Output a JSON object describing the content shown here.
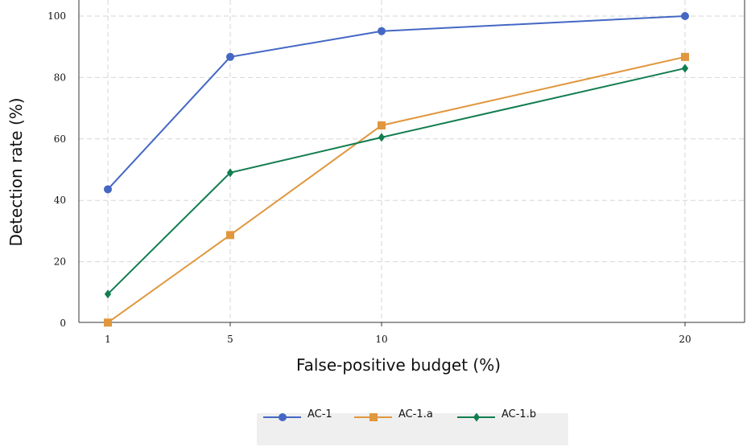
{
  "chart_data": {
    "type": "line",
    "xlabel": "False-positive budget (%)",
    "ylabel": "Detection rate (%)",
    "x": [
      1,
      5,
      10,
      20
    ],
    "x_tick_labels": [
      "1",
      "5",
      "10",
      "20"
    ],
    "y_tick_labels": [
      "0",
      "20",
      "40",
      "60",
      "80",
      "100"
    ],
    "ylim": [
      0,
      100
    ],
    "grid": true,
    "legend_position": "bottom-center",
    "series": [
      {
        "name": "AC-1",
        "values": [
          43.6,
          86.7,
          95.1,
          100.0
        ],
        "color": "#4467c4",
        "marker": "circle"
      },
      {
        "name": "AC-1.a",
        "values": [
          0.2,
          28.7,
          64.4,
          86.7
        ],
        "color": "#e0973d",
        "marker": "square"
      },
      {
        "name": "AC-1.b",
        "values": [
          9.5,
          49.0,
          60.5,
          83.0
        ],
        "color": "#127d4f",
        "marker": "diamond"
      }
    ]
  }
}
